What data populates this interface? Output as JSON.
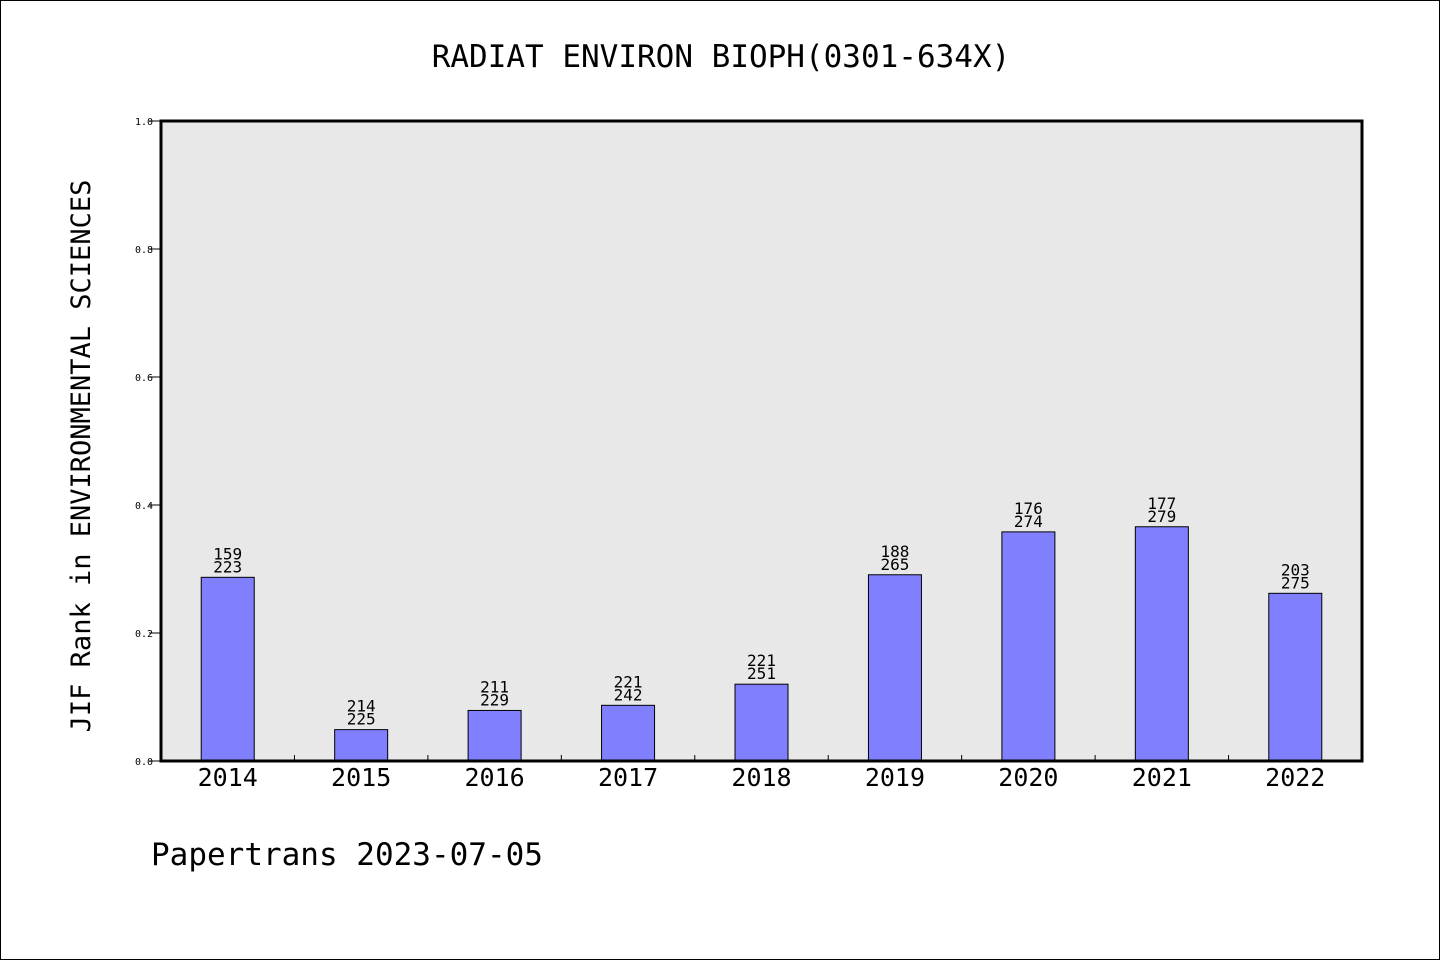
{
  "footer": "Papertrans 2023-07-05",
  "chart_data": {
    "type": "bar",
    "title": "RADIAT ENVIRON BIOPH(0301-634X)",
    "xlabel": "",
    "ylabel": "JIF Rank in ENVIRONMENTAL SCIENCES",
    "ylim": [
      0,
      1.0
    ],
    "yticks": [
      "0.0",
      "0.2",
      "0.4",
      "0.6",
      "0.8",
      "1.0"
    ],
    "grid": false,
    "legend": "none",
    "categories": [
      "2014",
      "2015",
      "2016",
      "2017",
      "2018",
      "2019",
      "2020",
      "2021",
      "2022"
    ],
    "values": [
      0.287,
      0.049,
      0.079,
      0.087,
      0.12,
      0.291,
      0.358,
      0.366,
      0.262
    ],
    "annotations": [
      {
        "rank": "159",
        "total": "223"
      },
      {
        "rank": "214",
        "total": "225"
      },
      {
        "rank": "211",
        "total": "229"
      },
      {
        "rank": "221",
        "total": "242"
      },
      {
        "rank": "221",
        "total": "251"
      },
      {
        "rank": "188",
        "total": "265"
      },
      {
        "rank": "176",
        "total": "274"
      },
      {
        "rank": "177",
        "total": "279"
      },
      {
        "rank": "203",
        "total": "275"
      }
    ],
    "colors": {
      "bar": "#8080ff",
      "plot_background": "#e8e8e8",
      "frame": "#000000"
    }
  }
}
